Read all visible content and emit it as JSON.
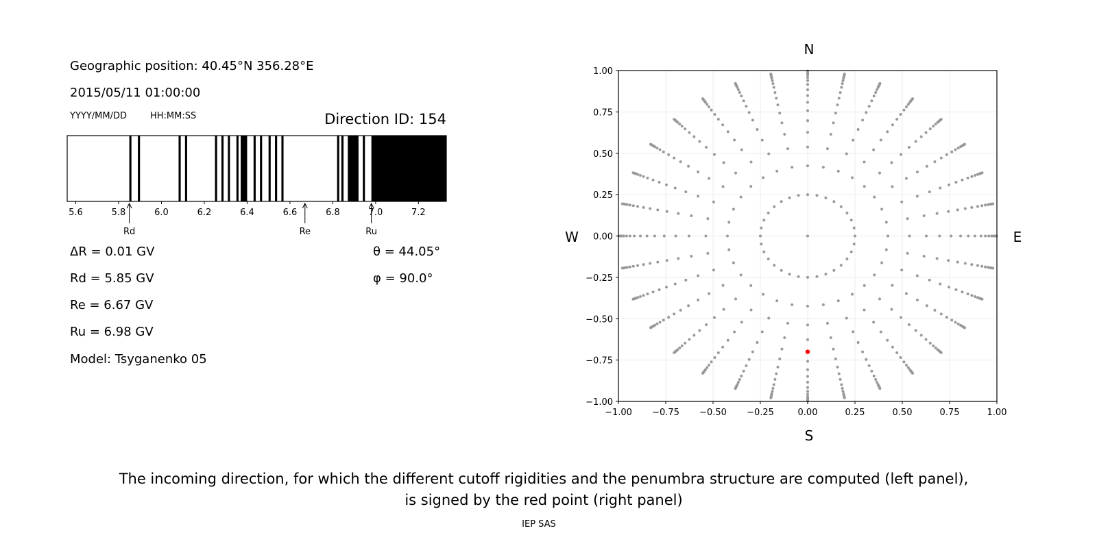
{
  "info": {
    "geo_position": "Geographic position: 40.45°N 356.28°E",
    "datetime": "2015/05/11 01:00:00",
    "date_format": "YYYY/MM/DD",
    "time_format": "HH:MM:SS",
    "direction_id": "Direction ID: 154",
    "delta_r": "ΔR = 0.01 GV",
    "rd": "Rd = 5.85 GV",
    "re": "Re = 6.67 GV",
    "ru": "Ru = 6.98 GV",
    "model": "Model: Tsyganenko 05",
    "theta": "θ = 44.05°",
    "phi": "φ = 90.0°"
  },
  "caption": {
    "line1": "The incoming direction, for which the different cutoff rigidities and the penumbra structure are computed (left panel),",
    "line2": "is signed by the red point (right panel)",
    "credit": "IEP SAS"
  },
  "chart_data": [
    {
      "type": "bar",
      "subtype": "penumbra-stripes",
      "xlim": [
        5.56,
        7.33
      ],
      "xticks": [
        5.6,
        5.8,
        6.0,
        6.2,
        6.4,
        6.6,
        6.8,
        7.0,
        7.2
      ],
      "xtick_labels": [
        "5.6",
        "5.8",
        "6.0",
        "6.2",
        "6.4",
        "6.6",
        "6.8",
        "7.0",
        "7.2"
      ],
      "forbidden_intervals_gv": [
        [
          5.85,
          5.86
        ],
        [
          5.89,
          5.9
        ],
        [
          6.08,
          6.09
        ],
        [
          6.11,
          6.12
        ],
        [
          6.25,
          6.26
        ],
        [
          6.28,
          6.29
        ],
        [
          6.31,
          6.32
        ],
        [
          6.35,
          6.36
        ],
        [
          6.37,
          6.4
        ],
        [
          6.43,
          6.44
        ],
        [
          6.46,
          6.47
        ],
        [
          6.5,
          6.51
        ],
        [
          6.53,
          6.54
        ],
        [
          6.56,
          6.57
        ],
        [
          6.82,
          6.83
        ],
        [
          6.84,
          6.85
        ],
        [
          6.87,
          6.92
        ],
        [
          6.94,
          6.95
        ],
        [
          6.98,
          7.33
        ]
      ],
      "markers": [
        {
          "label": "Rd",
          "value": 5.85
        },
        {
          "label": "Re",
          "value": 6.67
        },
        {
          "label": "Ru",
          "value": 6.98
        }
      ],
      "colors": {
        "forbidden": "#000000",
        "allowed": "#ffffff"
      }
    },
    {
      "type": "scatter",
      "xlim": [
        -1.0,
        1.0
      ],
      "ylim": [
        -1.0,
        1.0
      ],
      "xticks": [
        "-1.00",
        "-0.75",
        "-0.50",
        "-0.25",
        "0.00",
        "0.25",
        "0.50",
        "0.75",
        "1.00"
      ],
      "yticks": [
        "-1.00",
        "-0.75",
        "-0.50",
        "-0.25",
        "0.00",
        "0.25",
        "0.50",
        "0.75",
        "1.00"
      ],
      "grid": true,
      "compass": {
        "top": "N",
        "bottom": "S",
        "left": "W",
        "right": "E"
      },
      "directions": {
        "center": [
          0,
          0
        ],
        "ring_radii": [
          0.25,
          0.424,
          0.538,
          0.627,
          0.697,
          0.758,
          0.808,
          0.849,
          0.884,
          0.916,
          0.939,
          0.957,
          0.972,
          0.981,
          0.987,
          0.993,
          0.998
        ],
        "azimuth_step_deg": 11.25,
        "color": "#999999"
      },
      "selected_point": {
        "x": 0.0,
        "y": -0.7,
        "color": "#ff0000"
      }
    }
  ]
}
